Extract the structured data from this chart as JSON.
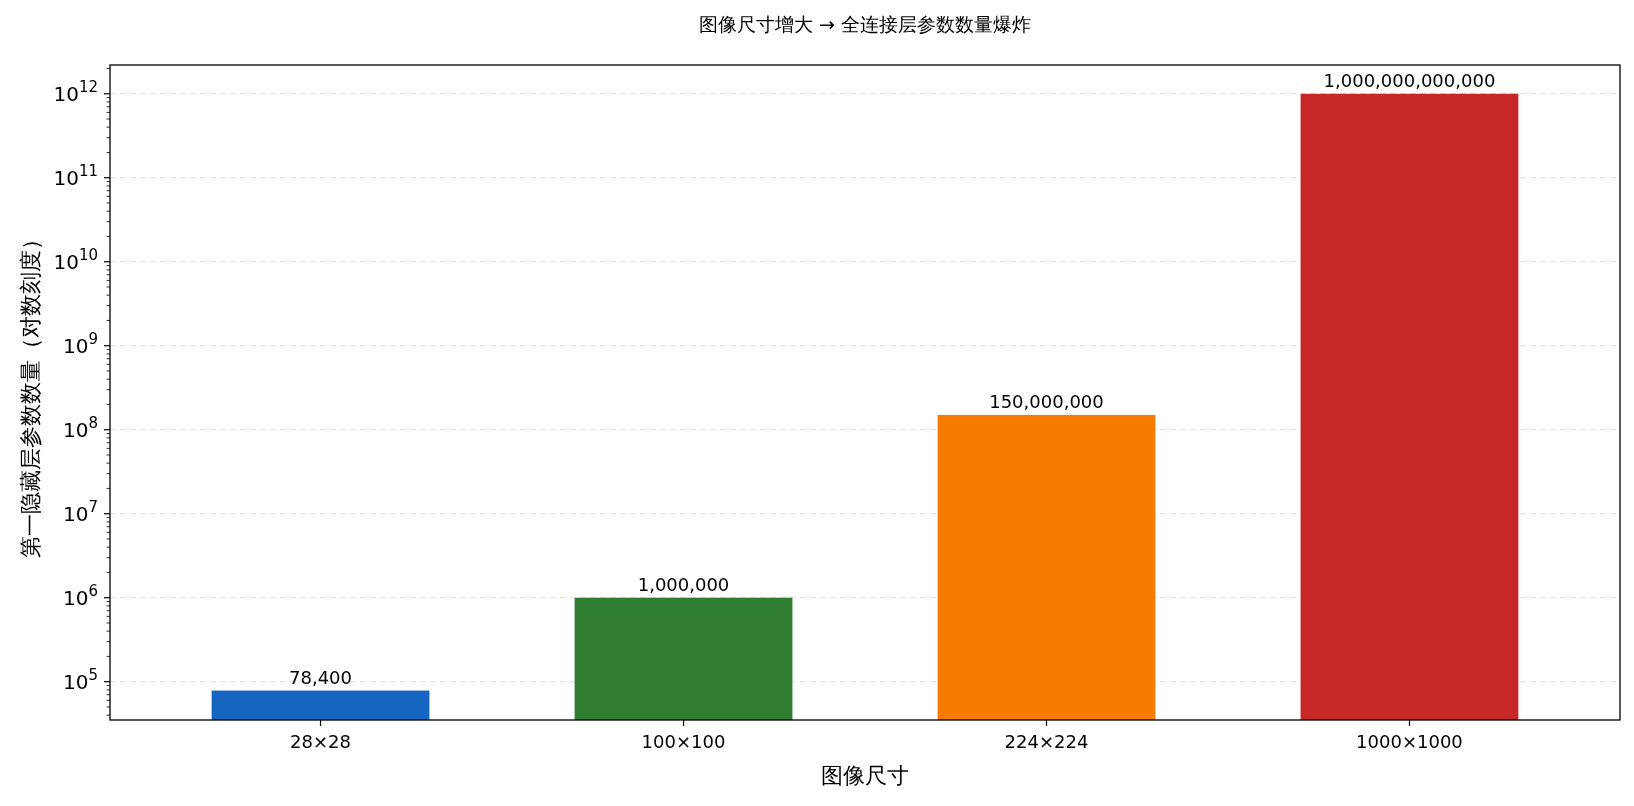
{
  "chart_data": {
    "type": "bar",
    "title": "图像尺寸增大 → 全连接层参数数量爆炸",
    "xlabel": "图像尺寸",
    "ylabel": "第一隐藏层参数数量（对数刻度）",
    "categories": [
      "28×28",
      "100×100",
      "224×224",
      "1000×1000"
    ],
    "values": [
      78400,
      1000000,
      150000000,
      1000000000000
    ],
    "colors": [
      "#1565c0",
      "#2e7d32",
      "#f57c00",
      "#c62828"
    ],
    "value_labels": [
      "78,400",
      "1,000,000",
      "150,000,000",
      "1,000,000,000,000"
    ],
    "log": "y",
    "ylim": [
      35000,
      2200000000000
    ],
    "yticks": [
      {
        "value": 100000,
        "label": "10$^{5}$"
      },
      {
        "value": 1000000,
        "label": "10$^{6}$"
      },
      {
        "value": 10000000,
        "label": "10$^{7}$"
      },
      {
        "value": 100000000,
        "label": "10$^{8}$"
      },
      {
        "value": 1000000000,
        "label": "10$^{9}$"
      },
      {
        "value": 10000000000,
        "label": "10$^{10}$"
      },
      {
        "value": 100000000000,
        "label": "10$^{11}$"
      },
      {
        "value": 1000000000000,
        "label": "10$^{12}$"
      }
    ],
    "grid": "y"
  }
}
